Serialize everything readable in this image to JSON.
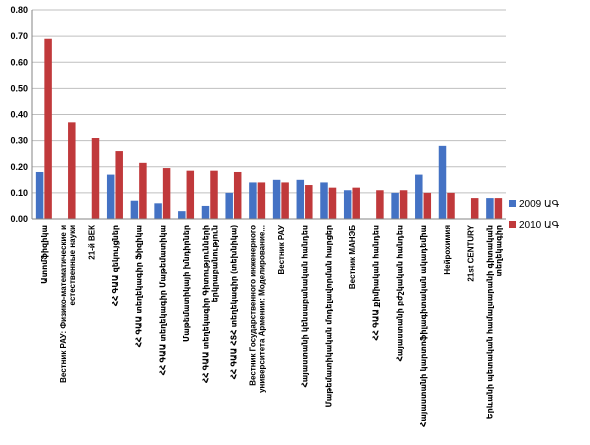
{
  "chart_data": {
    "type": "bar",
    "categories": [
      "Ատոմֆիզիկա",
      "Вестник РАУ: Физико-математические и естественные науки",
      "21-й ВЕК",
      "ՀՀ ԳԱԱ զեկույցներ",
      "ՀՀ ԳԱԱ տեղեկագիր Ֆիզիկա",
      "ՀՀ ԳԱԱ տեղեկագիր Մաթեմատիկա",
      "Մաթեմատիկայի խնդիրներ",
      "ՀՀ ԳԱԱ տեղեկագիր Գիտությունների երկրաբանություն",
      "ՀՀ ԳԱԱ ՀՏՀ տեղեկագիր (տեխնիկա)",
      "Вестник Государственного инженерного университета Армении: Моделирование...",
      "Вестник РАУ",
      "Հայաստանի կենսաբանական հանդես",
      "Մաթեմատիկական մոդելավորման հարցեր",
      "Вестник МАНЭБ",
      "ՀՀ ԳԱԱ քիմիական հանդես",
      "Հայաստանի բժշկական հանդես",
      "Հայաստանի կարտոֆիլագիտական ակադեմիա",
      "Нейрохимия",
      "21st CENTURY",
      "Երևանի պետական համալսարանի գիտական տեղեկագիր"
    ],
    "series": [
      {
        "name": "2009 ԱԳ",
        "color": "#4472C4",
        "values": [
          0.18,
          0,
          0,
          0.17,
          0.07,
          0.06,
          0.03,
          0.05,
          0.1,
          0.14,
          0.15,
          0.15,
          0.14,
          0.11,
          0,
          0.1,
          0.17,
          0.28,
          0,
          0.08
        ]
      },
      {
        "name": "2010 ԱԳ",
        "color": "#C0393B",
        "values": [
          0.69,
          0.37,
          0.31,
          0.26,
          0.215,
          0.195,
          0.185,
          0.185,
          0.18,
          0.14,
          0.14,
          0.13,
          0.12,
          0.12,
          0.11,
          0.11,
          0.1,
          0.1,
          0.08,
          0.08
        ]
      }
    ],
    "yticks": [
      "0.00",
      "0.10",
      "0.20",
      "0.30",
      "0.40",
      "0.50",
      "0.60",
      "0.70",
      "0.80"
    ],
    "ylim": [
      0,
      0.8
    ],
    "grid": true,
    "legend": "right"
  }
}
